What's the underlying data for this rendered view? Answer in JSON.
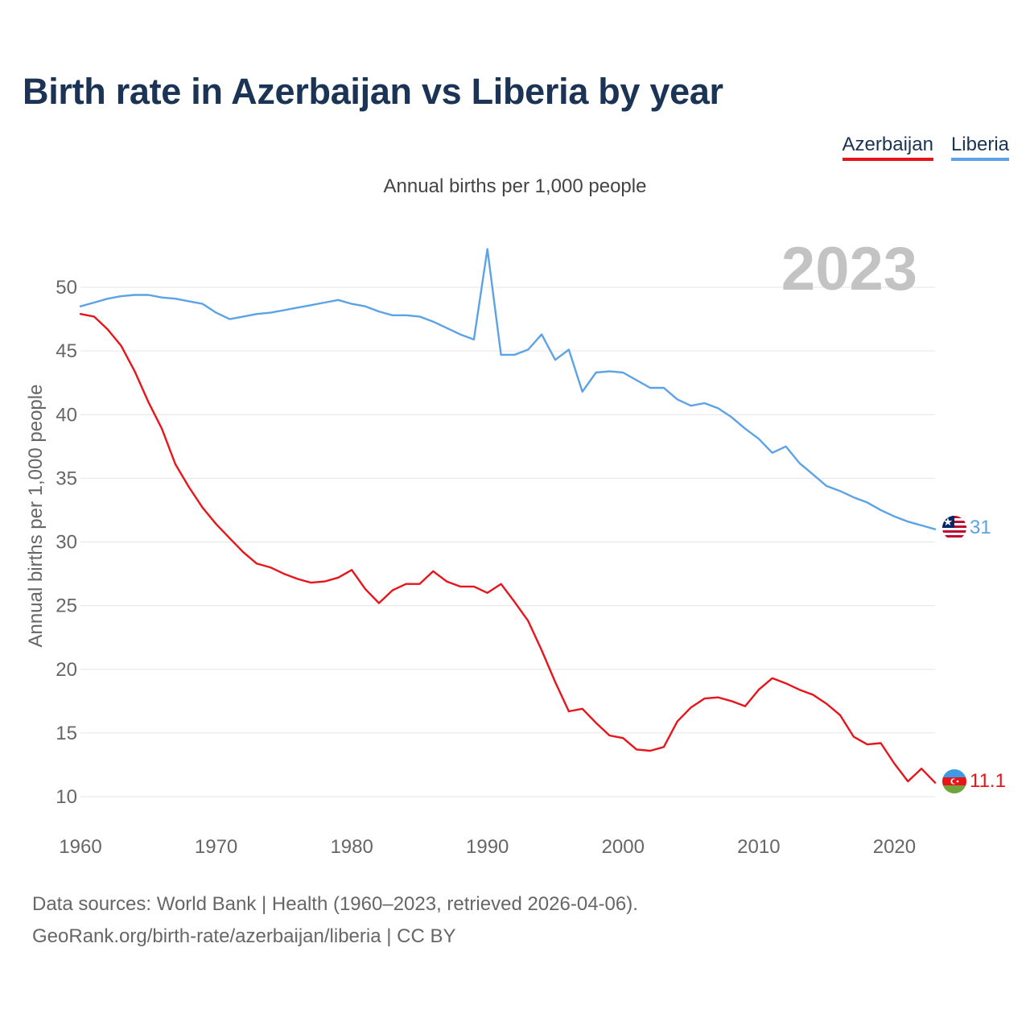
{
  "title": "Birth rate in Azerbaijan vs Liberia by year",
  "legend": {
    "items": [
      {
        "label": "Azerbaijan",
        "color": "#e8141a"
      },
      {
        "label": "Liberia",
        "color": "#5ba2e6"
      }
    ]
  },
  "subtitle": "Annual births per 1,000 people",
  "year_display": "2023",
  "end_labels": {
    "azerbaijan": "11.1",
    "liberia": "31"
  },
  "footer": {
    "line1": "Data sources: World Bank | Health (1960–2023, retrieved 2026-04-06).",
    "line2": "GeoRank.org/birth-rate/azerbaijan/liberia | CC BY"
  },
  "chart_data": {
    "type": "line",
    "title": "Birth rate in Azerbaijan vs Liberia by year",
    "xlabel": "",
    "ylabel": "Annual births per 1,000 people",
    "xlim": [
      1960,
      2023
    ],
    "ylim": [
      10,
      53
    ],
    "x_ticks": [
      1960,
      1970,
      1980,
      1990,
      2000,
      2010,
      2020
    ],
    "y_ticks": [
      10,
      15,
      20,
      25,
      30,
      35,
      40,
      45,
      50
    ],
    "grid": true,
    "legend_position": "top-right",
    "x": [
      1960,
      1961,
      1962,
      1963,
      1964,
      1965,
      1966,
      1967,
      1968,
      1969,
      1970,
      1971,
      1972,
      1973,
      1974,
      1975,
      1976,
      1977,
      1978,
      1979,
      1980,
      1981,
      1982,
      1983,
      1984,
      1985,
      1986,
      1987,
      1988,
      1989,
      1990,
      1991,
      1992,
      1993,
      1994,
      1995,
      1996,
      1997,
      1998,
      1999,
      2000,
      2001,
      2002,
      2003,
      2004,
      2005,
      2006,
      2007,
      2008,
      2009,
      2010,
      2011,
      2012,
      2013,
      2014,
      2015,
      2016,
      2017,
      2018,
      2019,
      2020,
      2021,
      2022,
      2023
    ],
    "series": [
      {
        "name": "Azerbaijan",
        "color": "#e8141a",
        "values": [
          47.9,
          47.7,
          46.7,
          45.4,
          43.4,
          41.0,
          38.9,
          36.1,
          34.3,
          32.7,
          31.4,
          30.3,
          29.2,
          28.3,
          28.0,
          27.5,
          27.1,
          26.8,
          26.9,
          27.2,
          27.8,
          26.3,
          25.2,
          26.2,
          26.7,
          26.7,
          27.7,
          26.9,
          26.5,
          26.5,
          26.0,
          26.7,
          25.3,
          23.8,
          21.5,
          19.0,
          16.7,
          16.9,
          15.8,
          14.8,
          14.6,
          13.7,
          13.6,
          13.9,
          15.9,
          17.0,
          17.7,
          17.8,
          17.5,
          17.1,
          18.4,
          19.3,
          18.9,
          18.4,
          18.0,
          17.3,
          16.4,
          14.7,
          14.1,
          14.2,
          12.6,
          11.2,
          12.2,
          11.1
        ]
      },
      {
        "name": "Liberia",
        "color": "#5ba2e6",
        "values": [
          48.5,
          48.8,
          49.1,
          49.3,
          49.4,
          49.4,
          49.2,
          49.1,
          48.9,
          48.7,
          48.0,
          47.5,
          47.7,
          47.9,
          48.0,
          48.2,
          48.4,
          48.6,
          48.8,
          49.0,
          48.7,
          48.5,
          48.1,
          47.8,
          47.8,
          47.7,
          47.3,
          46.8,
          46.3,
          45.9,
          53.0,
          44.7,
          44.7,
          45.1,
          46.3,
          44.3,
          45.1,
          41.8,
          43.3,
          43.4,
          43.3,
          42.7,
          42.1,
          42.1,
          41.2,
          40.7,
          40.9,
          40.5,
          39.8,
          38.9,
          38.1,
          37.0,
          37.5,
          36.2,
          35.3,
          34.4,
          34.0,
          33.5,
          33.1,
          32.5,
          32.0,
          31.6,
          31.3,
          31.0
        ]
      }
    ]
  }
}
